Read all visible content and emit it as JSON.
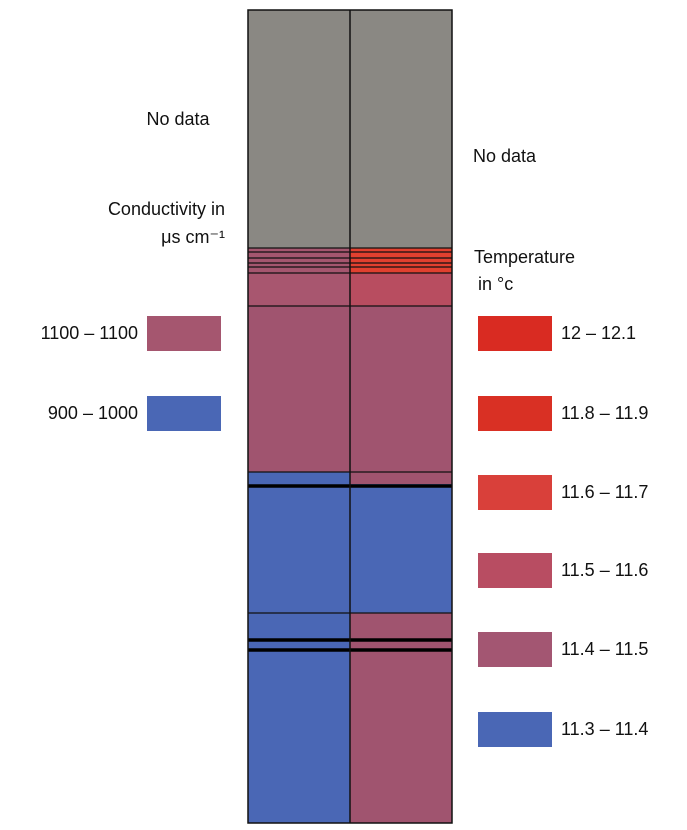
{
  "left_panel": {
    "no_data": "No data",
    "title_lines": [
      "Conductivity in",
      "μs cm⁻¹"
    ],
    "legend": [
      {
        "label": "1100 – 1100",
        "color": "#a5566f"
      },
      {
        "label": "900 – 1000",
        "color": "#4a67b5"
      }
    ]
  },
  "right_panel": {
    "no_data": "No data",
    "title_lines": [
      "Temperature",
      "in °c"
    ],
    "legend": [
      {
        "label": "12 – 12.1",
        "color": "#d92b22"
      },
      {
        "label": "11.8 – 11.9",
        "color": "#d93024"
      },
      {
        "label": "11.6 – 11.7",
        "color": "#d9403a"
      },
      {
        "label": "11.5 – 11.6",
        "color": "#b84d62"
      },
      {
        "label": "11.4 – 11.5",
        "color": "#a35672"
      },
      {
        "label": "11.3 – 11.4",
        "color": "#4a67b5"
      }
    ]
  }
}
